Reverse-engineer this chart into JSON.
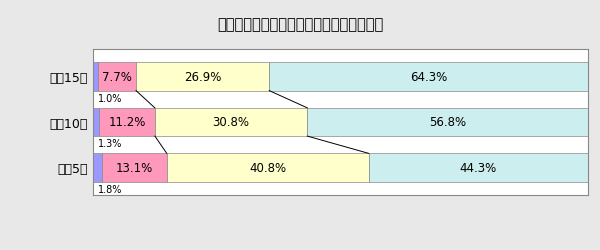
{
  "title": "自営漁業就業者数（男子）の年齢別構成比",
  "years": [
    "平成15年",
    "平成10年",
    "平成5年"
  ],
  "segments": {
    "15~24": [
      1.0,
      1.3,
      1.8
    ],
    "25~39": [
      7.7,
      11.2,
      13.1
    ],
    "40~59": [
      26.9,
      30.8,
      40.8
    ],
    "60+": [
      64.3,
      56.8,
      44.3
    ]
  },
  "labels_in_bar": {
    "25~39": [
      "7.7%",
      "11.2%",
      "13.1%"
    ],
    "40~59": [
      "26.9%",
      "30.8%",
      "40.8%"
    ],
    "60+": [
      "64.3%",
      "56.8%",
      "44.3%"
    ]
  },
  "labels_below": [
    "1.0%",
    "1.3%",
    "1.8%"
  ],
  "colors": {
    "15~24": "#9999FF",
    "25~39": "#FF99BB",
    "40~59": "#FFFFCC",
    "60+": "#CCEEEE"
  },
  "fig_bg": "#E8E8E8",
  "chart_bg": "#FFFFFF",
  "bar_edge_color": "#888888",
  "title_fontsize": 10.5,
  "label_fontsize": 8.5,
  "tick_fontsize": 9,
  "legend_fontsize": 8
}
